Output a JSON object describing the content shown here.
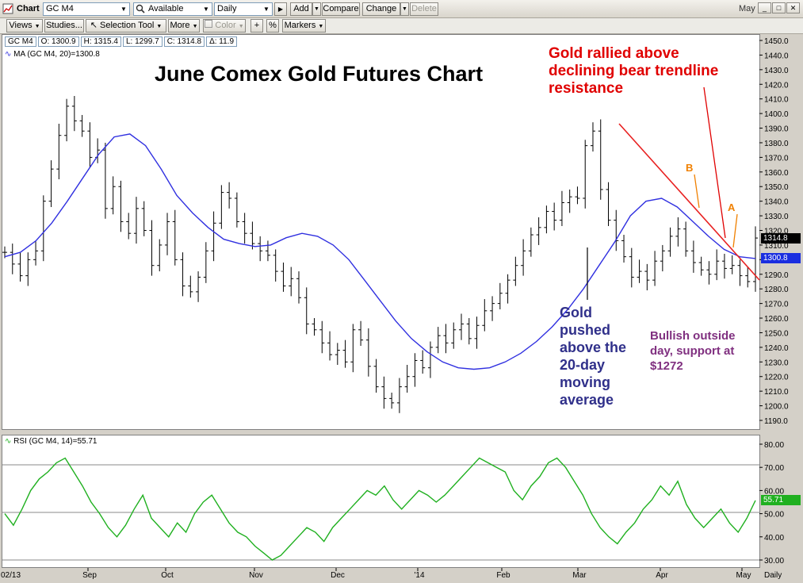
{
  "toolbar": {
    "chart_label": "Chart",
    "symbol": "GC M4",
    "watchlist": "Available",
    "period": "Daily",
    "add": "Add",
    "compare": "Compare",
    "change": "Change",
    "delete": "Delete",
    "window_label": "May"
  },
  "toolbar2": {
    "views": "Views",
    "studies": "Studies...",
    "selection_tool": "Selection Tool",
    "more": "More",
    "color": "Color",
    "crosshair": "+",
    "percent": "%",
    "markers": "Markers"
  },
  "quote": {
    "symbol": "GC M4",
    "open": "O: 1300.9",
    "high": "H: 1315.4",
    "low": "L: 1299.7",
    "close": "C: 1314.8",
    "change": "Δ: 11.9"
  },
  "ma_legend": "MA (GC M4, 20)=1300.8",
  "rsi_legend": "RSI (GC M4, 14)=55.71",
  "price_badge": "1314.8",
  "ma_badge": "1300.8",
  "rsi_badge": "55.71",
  "colors": {
    "price_bars": "#000000",
    "ma_line": "#3030e0",
    "rsi_line": "#20b020",
    "trendline": "#e82020",
    "annotation_red": "#e00000",
    "annotation_orange": "#f08000",
    "annotation_blue": "#30308a",
    "annotation_purple": "#803080"
  },
  "annotations": {
    "title": "June Comex Gold Futures Chart",
    "rally_line1": "Gold rallied above",
    "rally_line2": "declining bear trendline",
    "rally_line3": "resistance",
    "pushed_line1": "Gold",
    "pushed_line2": "pushed",
    "pushed_line3": "above the",
    "pushed_line4": "20-day",
    "pushed_line5": "moving",
    "pushed_line6": "average",
    "bullish_line1": "Bullish outside",
    "bullish_line2": "day, support at",
    "bullish_line3": "$1272",
    "label_a": "A",
    "label_b": "B"
  },
  "x_axis": {
    "start_label": "02/13",
    "frequency": "Daily",
    "months": [
      "Sep",
      "Oct",
      "Nov",
      "Dec",
      "'14",
      "Feb",
      "Mar",
      "Apr",
      "May"
    ]
  },
  "chart_data": [
    {
      "type": "bar",
      "subtype": "ohlc",
      "title": "June Comex Gold Futures Chart",
      "x_range": [
        "Aug 2013",
        "May 2014"
      ],
      "ylim": [
        1180,
        1455
      ],
      "y_ticks": [
        1190,
        1200,
        1210,
        1220,
        1230,
        1240,
        1250,
        1260,
        1270,
        1280,
        1290,
        1300,
        1310,
        1320,
        1330,
        1340,
        1350,
        1360,
        1370,
        1380,
        1390,
        1400,
        1410,
        1420,
        1430,
        1440,
        1450
      ],
      "series": [
        {
          "name": "GC M4",
          "role": "price"
        },
        {
          "name": "MA (GC M4, 20)",
          "role": "moving_average"
        }
      ],
      "close_path": [
        1305,
        1297,
        1289,
        1300,
        1306,
        1340,
        1362,
        1385,
        1405,
        1395,
        1388,
        1370,
        1375,
        1335,
        1350,
        1326,
        1318,
        1335,
        1320,
        1296,
        1310,
        1326,
        1300,
        1282,
        1278,
        1288,
        1306,
        1325,
        1346,
        1342,
        1326,
        1318,
        1311,
        1306,
        1303,
        1292,
        1282,
        1287,
        1274,
        1256,
        1252,
        1243,
        1235,
        1238,
        1230,
        1252,
        1245,
        1227,
        1213,
        1205,
        1202,
        1213,
        1220,
        1231,
        1226,
        1240,
        1248,
        1243,
        1252,
        1256,
        1246,
        1255,
        1265,
        1270,
        1277,
        1286,
        1296,
        1306,
        1317,
        1322,
        1333,
        1327,
        1339,
        1343,
        1342,
        1378,
        1388,
        1348,
        1327,
        1313,
        1302,
        1288,
        1292,
        1286,
        1299,
        1306,
        1316,
        1321,
        1306,
        1298,
        1293,
        1290,
        1299,
        1294,
        1296,
        1289,
        1285,
        1314.8
      ],
      "ma_path": [
        1302,
        1305,
        1313,
        1325,
        1340,
        1356,
        1372,
        1384,
        1386,
        1378,
        1362,
        1344,
        1332,
        1322,
        1314,
        1311,
        1309,
        1310,
        1315,
        1318,
        1316,
        1310,
        1300,
        1286,
        1272,
        1258,
        1246,
        1237,
        1230,
        1226,
        1225,
        1226,
        1230,
        1236,
        1244,
        1254,
        1266,
        1280,
        1296,
        1312,
        1330,
        1340,
        1342,
        1336,
        1326,
        1316,
        1307,
        1302,
        1300.8
      ],
      "trendline": {
        "from": {
          "date": "mid-Mar",
          "value": 1393
        },
        "to": {
          "date": "early-May",
          "value": 1286
        }
      },
      "last": {
        "open": 1300.9,
        "high": 1315.4,
        "low": 1299.7,
        "close": 1314.8,
        "ma20": 1300.8
      }
    },
    {
      "type": "line",
      "title": "RSI (GC M4, 14)",
      "ylim": [
        28,
        83
      ],
      "y_ticks": [
        30,
        40,
        50,
        60,
        70,
        80
      ],
      "reference_lines": [
        30,
        50,
        70
      ],
      "series": [
        {
          "name": "RSI (GC M4, 14)",
          "values": [
            50,
            45,
            52,
            60,
            65,
            68,
            72,
            74,
            68,
            62,
            55,
            50,
            44,
            40,
            45,
            52,
            58,
            48,
            44,
            40,
            46,
            42,
            50,
            55,
            58,
            52,
            46,
            42,
            40,
            36,
            33,
            30,
            32,
            36,
            40,
            44,
            42,
            38,
            44,
            48,
            52,
            56,
            60,
            58,
            62,
            56,
            52,
            56,
            60,
            58,
            55,
            58,
            62,
            66,
            70,
            74,
            72,
            70,
            68,
            60,
            56,
            62,
            66,
            72,
            74,
            70,
            64,
            58,
            50,
            44,
            40,
            37,
            42,
            46,
            52,
            56,
            62,
            58,
            64,
            54,
            48,
            44,
            48,
            52,
            46,
            42,
            48,
            55.71
          ]
        }
      ],
      "last": 55.71
    }
  ]
}
